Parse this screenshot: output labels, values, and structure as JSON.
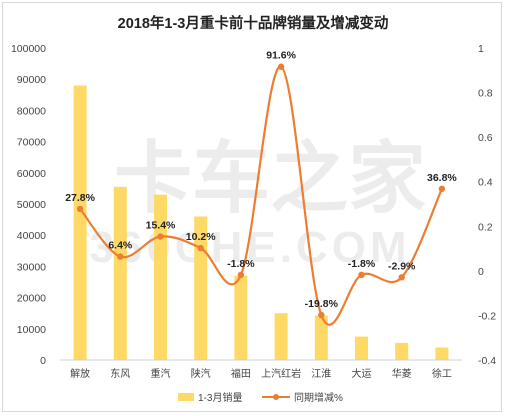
{
  "chart_data": {
    "type": "bar",
    "title": "2018年1-3月重卡前十品牌销量及增减变动",
    "categories": [
      "解放",
      "东风",
      "重汽",
      "陕汽",
      "福田",
      "上汽红岩",
      "江淮",
      "大运",
      "华菱",
      "徐工"
    ],
    "series": [
      {
        "name": "1-3月销量",
        "type": "bar",
        "axis": "left",
        "color": "#ffd966",
        "values": [
          88000,
          55500,
          53000,
          46000,
          27000,
          15000,
          14300,
          7500,
          5500,
          4000
        ]
      },
      {
        "name": "同期增减%",
        "type": "line",
        "axis": "right",
        "color": "#ed7d31",
        "values": [
          0.278,
          0.064,
          0.154,
          0.102,
          -0.018,
          0.916,
          -0.198,
          -0.018,
          -0.029,
          0.368
        ],
        "labels": [
          "27.8%",
          "6.4%",
          "15.4%",
          "10.2%",
          "-1.8%",
          "91.6%",
          "-19.8%",
          "-1.8%",
          "-2.9%",
          "36.8%"
        ]
      }
    ],
    "y_left": {
      "ylim": [
        0,
        100000
      ],
      "ticks": [
        "0",
        "10000",
        "20000",
        "30000",
        "40000",
        "50000",
        "60000",
        "70000",
        "80000",
        "90000",
        "100000"
      ]
    },
    "y_right": {
      "ylim": [
        -0.4,
        1
      ],
      "ticks": [
        "-0.4",
        "-0.2",
        "0",
        "0.2",
        "0.4",
        "0.6",
        "0.8",
        "1"
      ]
    },
    "legend_position": "bottom",
    "grid": false,
    "watermark": "卡车之家 360CHE.COM"
  }
}
